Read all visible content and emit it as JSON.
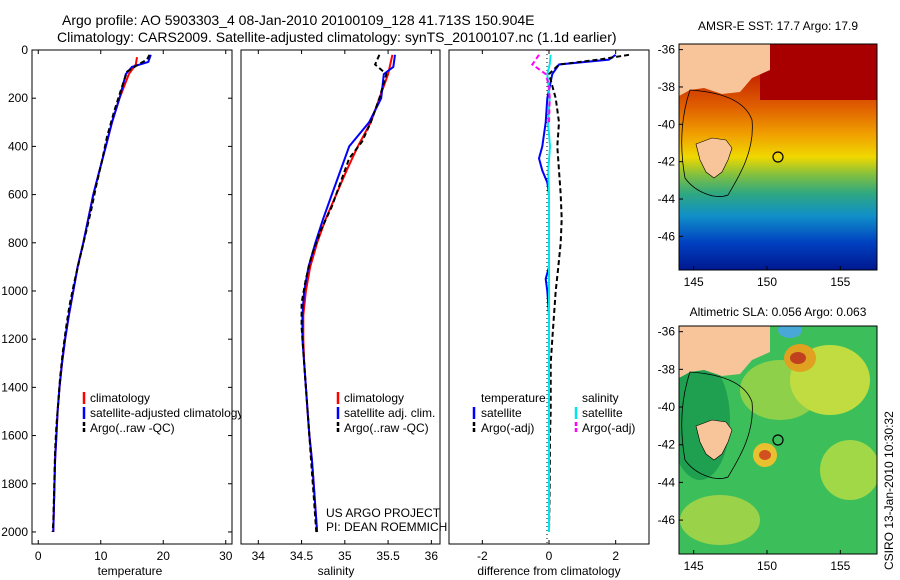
{
  "figure": {
    "title_line1": "Argo profile: AO 5903303_4 08-Jan-2010 20100109_128 41.713S 150.904E",
    "title_line2": "Climatology: CARS2009. Satellite-adjusted climatology: synTS_20100107.nc (1.1d earlier)",
    "credit_line1": "US ARGO PROJECT",
    "credit_line2": "PI: DEAN ROEMMICH",
    "timestamp": "CSIRO 13-Jan-2010 10:30:32"
  },
  "colors": {
    "climatology": "#ff0000",
    "satellite_adjusted": "#0000ff",
    "argo": "#000000",
    "salinity_satellite": "#00e5ee",
    "salinity_argo": "#ff00ff",
    "land": "#f8c49a"
  },
  "chart_data": [
    {
      "type": "line",
      "xlabel": "temperature",
      "ylabel": "",
      "xlim": [
        -1,
        31
      ],
      "ylim": [
        2050,
        0
      ],
      "xticks": [
        0,
        10,
        20,
        30
      ],
      "yticks": [
        0,
        200,
        400,
        600,
        800,
        1000,
        1200,
        1400,
        1600,
        1800,
        2000
      ],
      "legend": [
        "climatology",
        "satellite-adjusted climatology",
        "Argo(..raw -QC)"
      ],
      "series": [
        {
          "name": "climatology",
          "style": "solid",
          "color": "#ff0000",
          "points": [
            [
              15.8,
              30
            ],
            [
              15.6,
              60
            ],
            [
              14.5,
              100
            ],
            [
              13.0,
              200
            ],
            [
              11.8,
              300
            ],
            [
              10.8,
              400
            ],
            [
              9.8,
              500
            ],
            [
              8.8,
              600
            ],
            [
              8.0,
              700
            ],
            [
              7.2,
              800
            ],
            [
              6.3,
              900
            ],
            [
              5.6,
              1000
            ],
            [
              4.9,
              1100
            ],
            [
              4.3,
              1200
            ],
            [
              3.8,
              1300
            ],
            [
              3.4,
              1400
            ],
            [
              3.1,
              1500
            ],
            [
              2.9,
              1600
            ],
            [
              2.7,
              1700
            ],
            [
              2.6,
              1800
            ],
            [
              2.5,
              1900
            ],
            [
              2.4,
              2000
            ]
          ]
        },
        {
          "name": "satellite-adjusted climatology",
          "style": "solid",
          "color": "#0000ff",
          "points": [
            [
              18.0,
              20
            ],
            [
              17.6,
              50
            ],
            [
              15.0,
              70
            ],
            [
              14.0,
              100
            ],
            [
              13.0,
              200
            ],
            [
              11.8,
              300
            ],
            [
              10.8,
              400
            ],
            [
              9.8,
              500
            ],
            [
              8.8,
              600
            ],
            [
              8.0,
              700
            ],
            [
              7.2,
              800
            ],
            [
              6.3,
              900
            ],
            [
              5.6,
              1000
            ],
            [
              4.9,
              1100
            ],
            [
              4.3,
              1200
            ],
            [
              3.8,
              1300
            ],
            [
              3.4,
              1400
            ],
            [
              3.1,
              1500
            ],
            [
              2.9,
              1600
            ],
            [
              2.7,
              1700
            ],
            [
              2.6,
              1800
            ],
            [
              2.5,
              1900
            ],
            [
              2.4,
              2000
            ]
          ]
        },
        {
          "name": "Argo(..raw -QC)",
          "style": "dashed",
          "color": "#000000",
          "points": [
            [
              17.8,
              20
            ],
            [
              17.4,
              40
            ],
            [
              16.0,
              60
            ],
            [
              14.2,
              90
            ],
            [
              13.3,
              160
            ],
            [
              12.2,
              250
            ],
            [
              11.0,
              360
            ],
            [
              10.2,
              460
            ],
            [
              9.3,
              560
            ],
            [
              8.5,
              660
            ],
            [
              7.6,
              760
            ],
            [
              6.7,
              860
            ],
            [
              5.8,
              960
            ],
            [
              5.0,
              1060
            ],
            [
              4.4,
              1160
            ],
            [
              3.9,
              1260
            ],
            [
              3.5,
              1360
            ],
            [
              3.2,
              1460
            ],
            [
              2.9,
              1560
            ],
            [
              2.7,
              1660
            ],
            [
              2.6,
              1760
            ],
            [
              2.5,
              1860
            ],
            [
              2.4,
              1960
            ],
            [
              2.3,
              2000
            ]
          ]
        }
      ]
    },
    {
      "type": "line",
      "xlabel": "salinity",
      "ylabel": "",
      "xlim": [
        33.8,
        36.1
      ],
      "ylim": [
        2050,
        0
      ],
      "xticks": [
        34,
        34.5,
        35,
        35.5,
        36
      ],
      "legend": [
        "climatology",
        "satellite adj. clim.",
        "Argo(..raw -QC)"
      ],
      "series": [
        {
          "name": "climatology",
          "style": "solid",
          "color": "#ff0000",
          "points": [
            [
              35.55,
              20
            ],
            [
              35.5,
              100
            ],
            [
              35.4,
              200
            ],
            [
              35.3,
              300
            ],
            [
              35.15,
              400
            ],
            [
              35.02,
              500
            ],
            [
              34.9,
              600
            ],
            [
              34.78,
              700
            ],
            [
              34.68,
              800
            ],
            [
              34.6,
              900
            ],
            [
              34.55,
              1000
            ],
            [
              34.52,
              1100
            ],
            [
              34.52,
              1200
            ],
            [
              34.53,
              1300
            ],
            [
              34.55,
              1400
            ],
            [
              34.57,
              1500
            ],
            [
              34.59,
              1600
            ],
            [
              34.62,
              1700
            ],
            [
              34.64,
              1800
            ],
            [
              34.66,
              1900
            ],
            [
              34.68,
              2000
            ]
          ]
        },
        {
          "name": "satellite adj. clim.",
          "style": "solid",
          "color": "#0000ff",
          "points": [
            [
              35.58,
              20
            ],
            [
              35.56,
              70
            ],
            [
              35.45,
              100
            ],
            [
              35.42,
              200
            ],
            [
              35.28,
              300
            ],
            [
              35.05,
              400
            ],
            [
              34.95,
              500
            ],
            [
              34.85,
              600
            ],
            [
              34.75,
              700
            ],
            [
              34.66,
              800
            ],
            [
              34.58,
              900
            ],
            [
              34.53,
              1000
            ],
            [
              34.51,
              1100
            ],
            [
              34.51,
              1200
            ],
            [
              34.53,
              1300
            ],
            [
              34.55,
              1400
            ],
            [
              34.57,
              1500
            ],
            [
              34.59,
              1600
            ],
            [
              34.62,
              1700
            ],
            [
              34.64,
              1800
            ],
            [
              34.66,
              1900
            ],
            [
              34.68,
              2000
            ]
          ]
        },
        {
          "name": "Argo(..raw -QC)",
          "style": "dashed",
          "color": "#000000",
          "points": [
            [
              35.4,
              20
            ],
            [
              35.35,
              60
            ],
            [
              35.48,
              100
            ],
            [
              35.4,
              200
            ],
            [
              35.3,
              300
            ],
            [
              35.2,
              380
            ],
            [
              35.05,
              450
            ],
            [
              34.95,
              550
            ],
            [
              34.85,
              650
            ],
            [
              34.72,
              750
            ],
            [
              34.62,
              850
            ],
            [
              34.55,
              950
            ],
            [
              34.5,
              1050
            ],
            [
              34.5,
              1150
            ],
            [
              34.52,
              1250
            ],
            [
              34.54,
              1350
            ],
            [
              34.56,
              1450
            ],
            [
              34.58,
              1550
            ],
            [
              34.6,
              1650
            ],
            [
              34.62,
              1750
            ],
            [
              34.64,
              1850
            ],
            [
              34.66,
              1950
            ],
            [
              34.67,
              2000
            ]
          ]
        }
      ]
    },
    {
      "type": "line",
      "xlabel": "difference from climatology",
      "ylabel": "",
      "xlim": [
        -3,
        3
      ],
      "ylim": [
        2050,
        0
      ],
      "xticks": [
        -2,
        0,
        2
      ],
      "legend_columns": [
        {
          "heading": "temperature",
          "items": [
            "satellite",
            "Argo(-adj)"
          ]
        },
        {
          "heading": "salinity",
          "items": [
            "satellite",
            "Argo(-adj)"
          ]
        }
      ],
      "series": [
        {
          "name": "temperature satellite",
          "style": "solid",
          "color": "#0000ff",
          "points": [
            [
              2.0,
              20
            ],
            [
              1.8,
              40
            ],
            [
              0.3,
              60
            ],
            [
              0.1,
              100
            ],
            [
              -0.05,
              200
            ],
            [
              -0.1,
              300
            ],
            [
              -0.2,
              400
            ],
            [
              -0.3,
              450
            ],
            [
              -0.2,
              500
            ],
            [
              -0.05,
              550
            ],
            [
              0.0,
              600
            ],
            [
              0.0,
              700
            ],
            [
              0.0,
              800
            ],
            [
              0.0,
              900
            ],
            [
              -0.1,
              950
            ],
            [
              -0.05,
              1000
            ],
            [
              0.0,
              1100
            ],
            [
              0.0,
              1200
            ],
            [
              0.0,
              1300
            ],
            [
              0.0,
              1400
            ],
            [
              0.0,
              1600
            ],
            [
              0.0,
              1800
            ],
            [
              0.0,
              2000
            ]
          ]
        },
        {
          "name": "temperature Argo(-adj)",
          "style": "dashed",
          "color": "#000000",
          "points": [
            [
              2.4,
              20
            ],
            [
              1.5,
              40
            ],
            [
              0.3,
              60
            ],
            [
              0.0,
              100
            ],
            [
              0.2,
              200
            ],
            [
              0.3,
              300
            ],
            [
              0.25,
              400
            ],
            [
              0.3,
              500
            ],
            [
              0.35,
              600
            ],
            [
              0.38,
              700
            ],
            [
              0.35,
              800
            ],
            [
              0.28,
              900
            ],
            [
              0.2,
              1000
            ],
            [
              0.15,
              1100
            ],
            [
              0.1,
              1200
            ],
            [
              0.05,
              1300
            ],
            [
              0.05,
              1400
            ],
            [
              0.05,
              1500
            ],
            [
              0.03,
              1600
            ],
            [
              0.02,
              1800
            ],
            [
              0.0,
              2000
            ]
          ]
        },
        {
          "name": "salinity satellite",
          "style": "solid",
          "color": "#00e5ee",
          "points": [
            [
              0.05,
              20
            ],
            [
              0.02,
              60
            ],
            [
              -0.05,
              100
            ],
            [
              0.02,
              200
            ],
            [
              -0.03,
              300
            ],
            [
              0.03,
              400
            ],
            [
              -0.02,
              500
            ],
            [
              0.0,
              600
            ],
            [
              0.0,
              800
            ],
            [
              0.0,
              1000
            ],
            [
              0.0,
              1200
            ],
            [
              0.0,
              1400
            ],
            [
              0.0,
              1600
            ],
            [
              0.0,
              1800
            ],
            [
              0.0,
              2000
            ]
          ]
        },
        {
          "name": "salinity Argo(-adj)",
          "style": "dashed",
          "color": "#ff00ff",
          "points": [
            [
              -0.3,
              20
            ],
            [
              -0.5,
              60
            ],
            [
              -0.1,
              100
            ],
            [
              0.0,
              150
            ],
            [
              0.02,
              200
            ],
            [
              0.0,
              300
            ]
          ]
        }
      ]
    },
    {
      "type": "heatmap",
      "title": "AMSR-E SST: 17.7 Argo: 17.9",
      "xticks": [
        145,
        150,
        155
      ],
      "yticks": [
        -36,
        -38,
        -40,
        -42,
        -44,
        -46
      ],
      "xlim": [
        144,
        157.5
      ],
      "ylim": [
        -47.8,
        -35.7
      ],
      "float_position": [
        150.9,
        -41.7
      ]
    },
    {
      "type": "heatmap",
      "title": "Altimetric SLA: 0.056 Argo: 0.063",
      "xticks": [
        145,
        150,
        155
      ],
      "yticks": [
        -36,
        -38,
        -40,
        -42,
        -44,
        -46
      ],
      "xlim": [
        144,
        157.5
      ],
      "ylim": [
        -47.8,
        -35.7
      ],
      "float_position": [
        150.9,
        -41.7
      ]
    }
  ]
}
